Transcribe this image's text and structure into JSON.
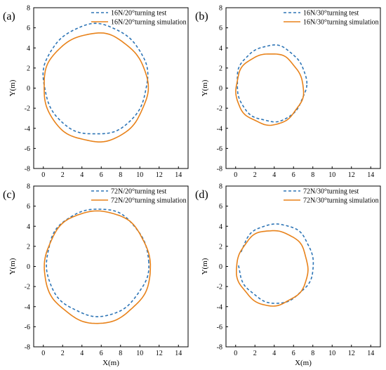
{
  "colors": {
    "test": "#2E75B6",
    "simulation": "#E8821A",
    "axis": "#000000"
  },
  "chart_data": [
    {
      "type": "line",
      "panel_label": "(a)",
      "xlabel": "",
      "ylabel": "Y(m)",
      "xlim": [
        -1,
        15
      ],
      "ylim": [
        -8,
        8
      ],
      "xticks": [
        "0",
        "2",
        "4",
        "6",
        "8",
        "10",
        "12",
        "14"
      ],
      "yticks": [
        "-8",
        "-6",
        "-4",
        "-2",
        "0",
        "2",
        "4",
        "6",
        "8"
      ],
      "legend_position": "top-right",
      "series": [
        {
          "name": "16N/20°turning test",
          "style": "dashed",
          "shape": "circle",
          "center": [
            5.4,
            0.85
          ],
          "rx": 5.4,
          "ry": 5.5
        },
        {
          "name": "16N/20°turning simulation",
          "style": "solid",
          "shape": "circle",
          "center": [
            5.4,
            0.05
          ],
          "rx": 5.4,
          "ry": 5.4
        }
      ]
    },
    {
      "type": "line",
      "panel_label": "(b)",
      "xlabel": "",
      "ylabel": "Y(m)",
      "xlim": [
        -1,
        15
      ],
      "ylim": [
        -8,
        8
      ],
      "xticks": [
        "0",
        "2",
        "4",
        "6",
        "8",
        "10",
        "12",
        "14"
      ],
      "yticks": [
        "-8",
        "-6",
        "-4",
        "-2",
        "0",
        "2",
        "4",
        "6",
        "8"
      ],
      "legend_position": "top-right",
      "series": [
        {
          "name": "16N/30°turning test",
          "style": "dashed",
          "shape": "circle",
          "center": [
            3.7,
            0.45
          ],
          "rx": 3.6,
          "ry": 3.8
        },
        {
          "name": "16N/30°turning simulation",
          "style": "solid",
          "shape": "circle",
          "center": [
            3.5,
            -0.1
          ],
          "rx": 3.5,
          "ry": 3.55
        }
      ]
    },
    {
      "type": "line",
      "panel_label": "(c)",
      "xlabel": "X(m)",
      "ylabel": "Y(m)",
      "xlim": [
        -1,
        15
      ],
      "ylim": [
        -8,
        8
      ],
      "xticks": [
        "0",
        "2",
        "4",
        "6",
        "8",
        "10",
        "12",
        "14"
      ],
      "yticks": [
        "-8",
        "-6",
        "-4",
        "-2",
        "0",
        "2",
        "4",
        "6",
        "8"
      ],
      "legend_position": "top-right",
      "series": [
        {
          "name": "72N/20°turning test",
          "style": "dashed",
          "shape": "circle",
          "center": [
            5.6,
            0.4
          ],
          "rx": 5.3,
          "ry": 5.35
        },
        {
          "name": "72N/20°turning simulation",
          "style": "solid",
          "shape": "circle",
          "center": [
            5.6,
            -0.05
          ],
          "rx": 5.5,
          "ry": 5.6
        }
      ]
    },
    {
      "type": "line",
      "panel_label": "(d)",
      "xlabel": "X(m)",
      "ylabel": "Y(m)",
      "xlim": [
        -1,
        15
      ],
      "ylim": [
        -8,
        8
      ],
      "xticks": [
        "0",
        "2",
        "4",
        "6",
        "8",
        "10",
        "12",
        "14"
      ],
      "yticks": [
        "-8",
        "-6",
        "-4",
        "-2",
        "0",
        "2",
        "4",
        "6",
        "8"
      ],
      "legend_position": "top-right",
      "series": [
        {
          "name": "72N/30°turning test",
          "style": "dashed",
          "shape": "arc",
          "center": [
            4.2,
            0.3
          ],
          "rx": 3.85,
          "ry": 3.95,
          "start_point": [
            0.3,
            0.1
          ]
        },
        {
          "name": "72N/30°turning simulation",
          "style": "solid",
          "shape": "circle",
          "center": [
            3.8,
            -0.15
          ],
          "rx": 3.7,
          "ry": 3.75
        }
      ]
    }
  ]
}
